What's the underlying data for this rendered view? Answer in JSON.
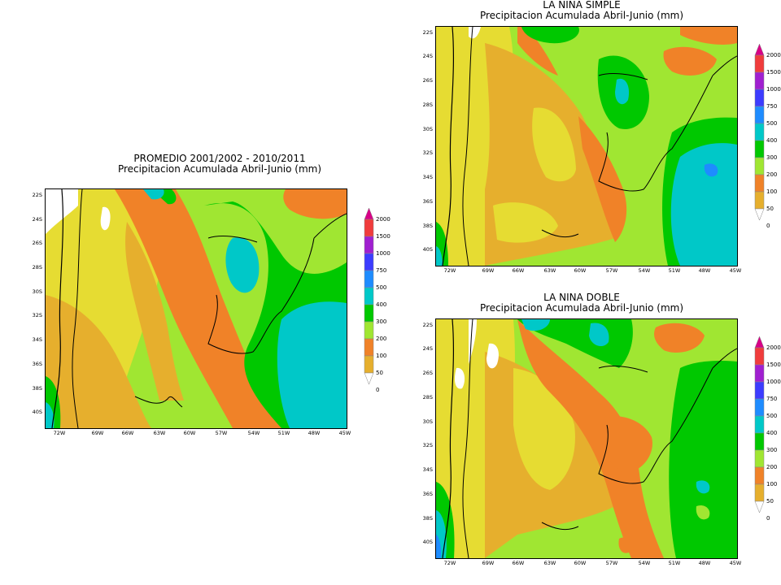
{
  "colorbar": {
    "levels": [
      "2000",
      "1500",
      "1000",
      "750",
      "500",
      "400",
      "300",
      "200",
      "100",
      "50",
      "0"
    ],
    "colors": [
      "#d80087",
      "#f03c3c",
      "#a01fd0",
      "#3c3cff",
      "#1e8cff",
      "#00c8c8",
      "#00c800",
      "#a0e632",
      "#f08228",
      "#e6af2d",
      "#e6dc32"
    ]
  },
  "panels": [
    {
      "id": "promedio",
      "title1": "PROMEDIO 2001/2002 - 2010/2011",
      "title2": "Precipitacion Acumulada Abril-Junio (mm)"
    },
    {
      "id": "simple",
      "title1": "LA NINA SIMPLE",
      "title2": "Precipitacion Acumulada Abril-Junio (mm)"
    },
    {
      "id": "doble",
      "title1": "LA NINA DOBLE",
      "title2": "Precipitacion Acumulada Abril-Junio (mm)"
    }
  ],
  "axes": {
    "lat_labels": [
      "22S",
      "24S",
      "26S",
      "28S",
      "30S",
      "32S",
      "34S",
      "36S",
      "38S",
      "40S"
    ],
    "lon_labels": [
      "72W",
      "69W",
      "66W",
      "63W",
      "60W",
      "57W",
      "54W",
      "51W",
      "48W",
      "45W"
    ]
  }
}
